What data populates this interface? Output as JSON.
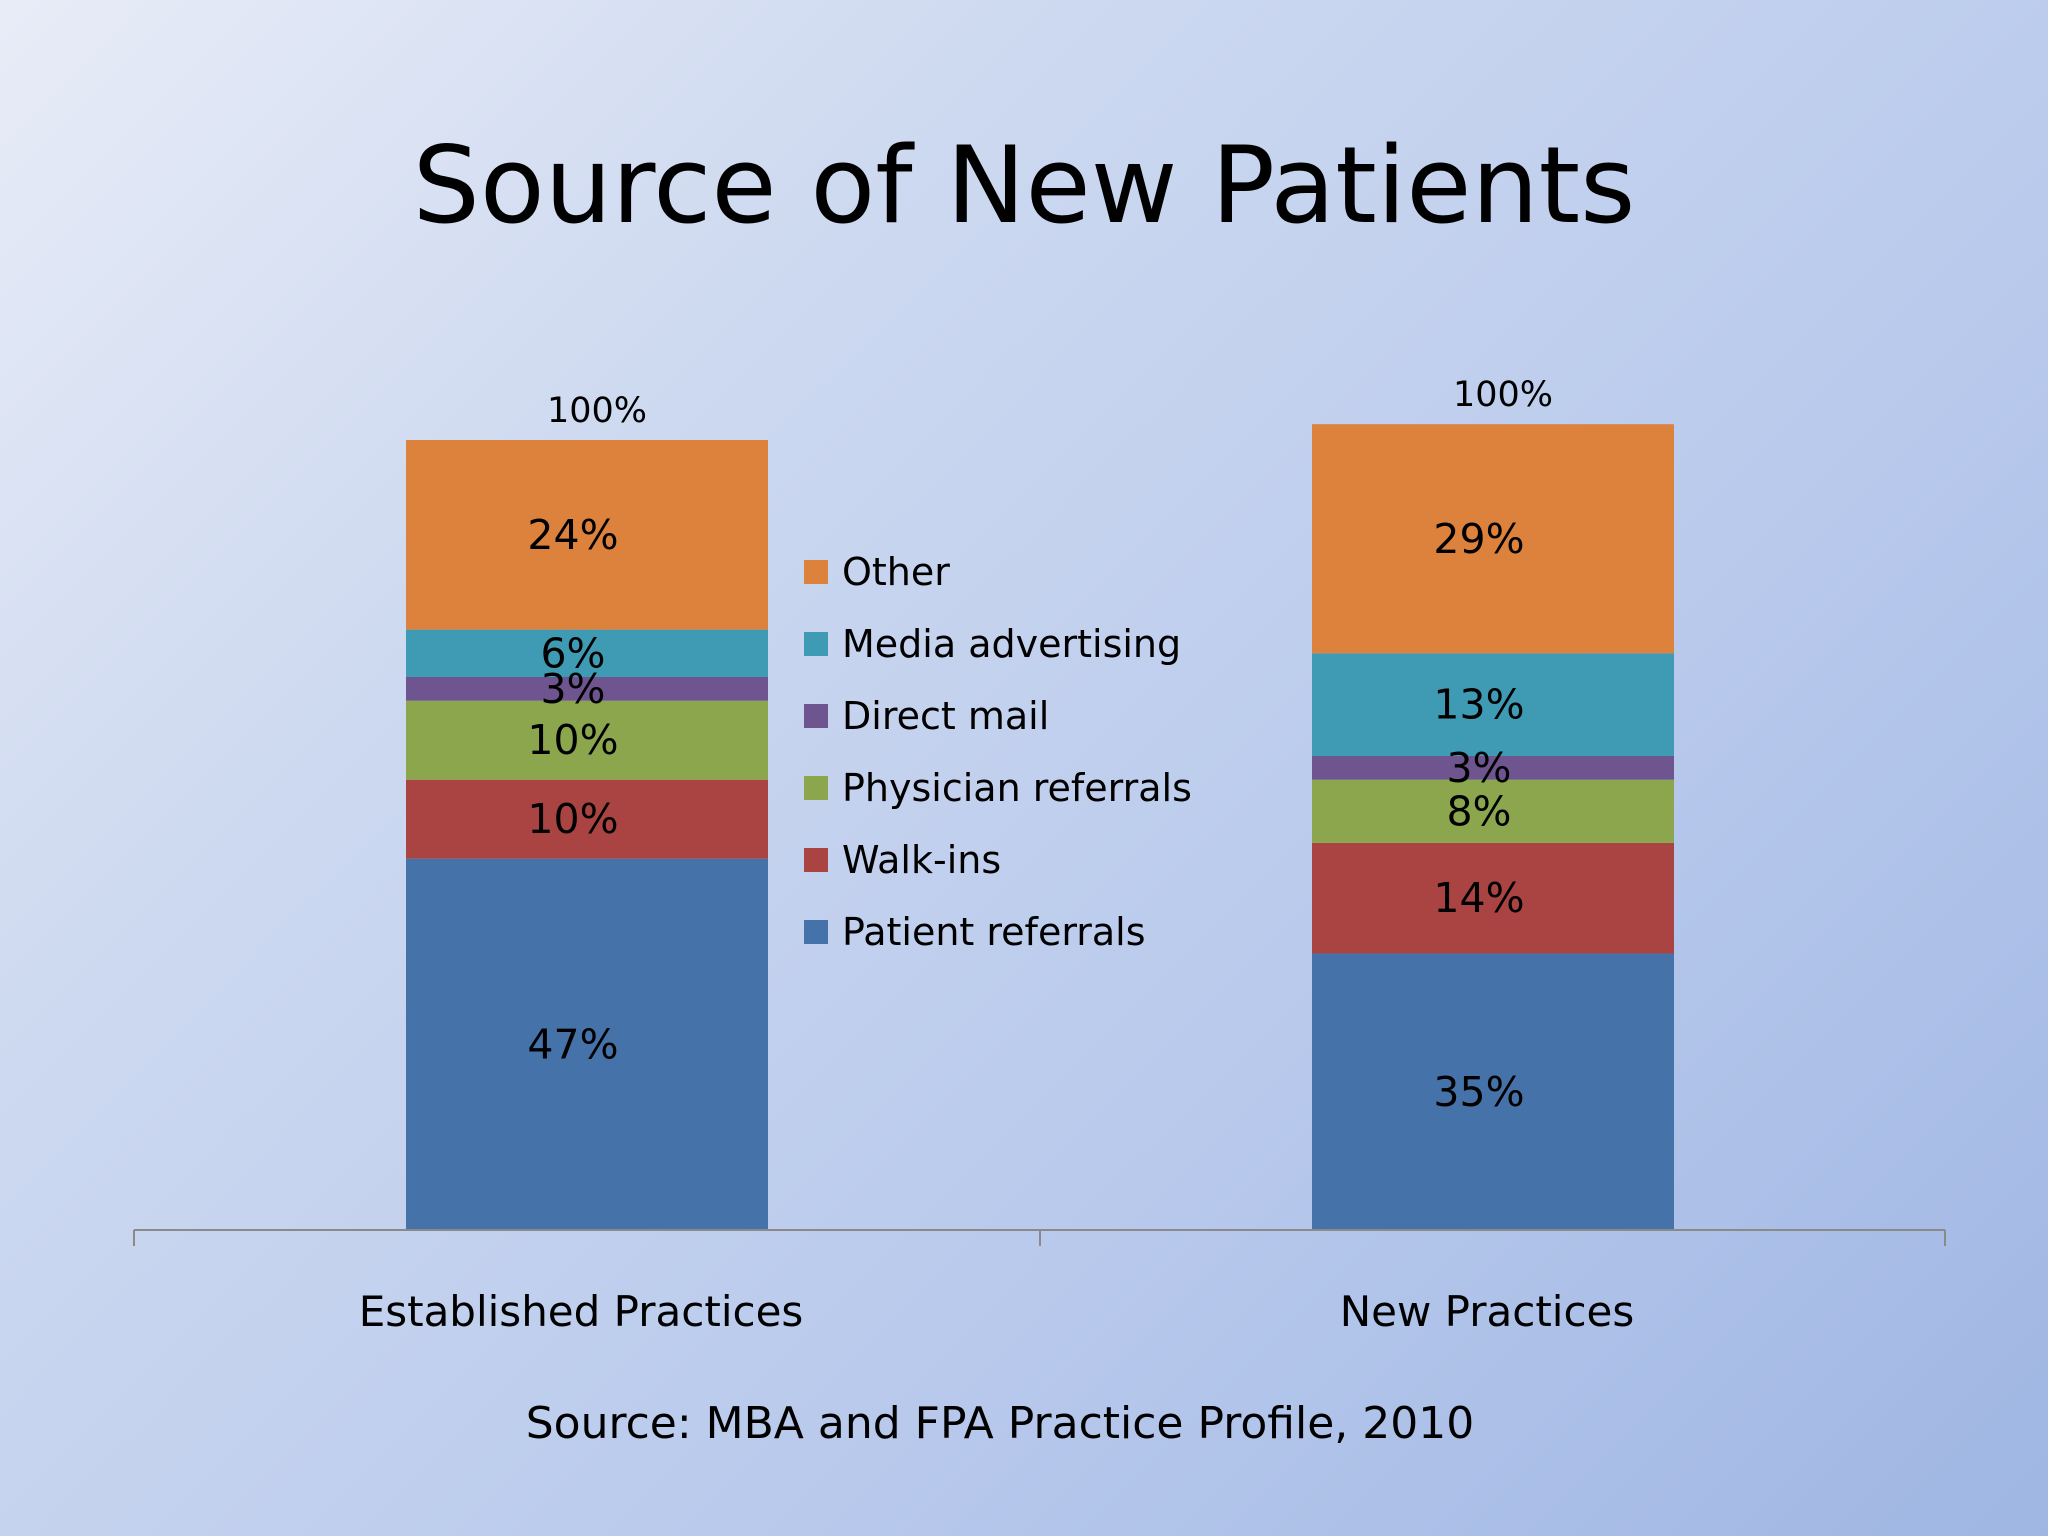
{
  "slide": {
    "title": "Source of New Patients",
    "source": "Source: MBA and FPA Practice Profile, 2010"
  },
  "chart_data": {
    "type": "bar",
    "stacked": true,
    "categories": [
      "Established Practices",
      "New Practices"
    ],
    "series": [
      {
        "name": "Patient referrals",
        "values": [
          47,
          35
        ],
        "color": "#4672AA"
      },
      {
        "name": "Walk-ins",
        "values": [
          10,
          14
        ],
        "color": "#A94442"
      },
      {
        "name": "Physician referrals",
        "values": [
          10,
          8
        ],
        "color": "#8CA64E"
      },
      {
        "name": "Direct mail",
        "values": [
          3,
          3
        ],
        "color": "#6F558F"
      },
      {
        "name": "Media advertising",
        "values": [
          6,
          13
        ],
        "color": "#3F9BB4"
      },
      {
        "name": "Other",
        "values": [
          24,
          29
        ],
        "color": "#DC823C"
      }
    ],
    "data_labels": {
      "Established Practices": [
        "47%",
        "10%",
        "10%",
        "3%",
        "6%",
        "24%"
      ],
      "New Practices": [
        "35%",
        "14%",
        "8%",
        "3%",
        "13%",
        "29%"
      ]
    },
    "totals": [
      "100%",
      "100%"
    ],
    "legend_order": [
      "Other",
      "Media advertising",
      "Direct mail",
      "Physician referrals",
      "Walk-ins",
      "Patient referrals"
    ],
    "legend_position": "center, between bars",
    "unit": "%",
    "ylim": [
      0,
      100
    ],
    "grid": false
  }
}
